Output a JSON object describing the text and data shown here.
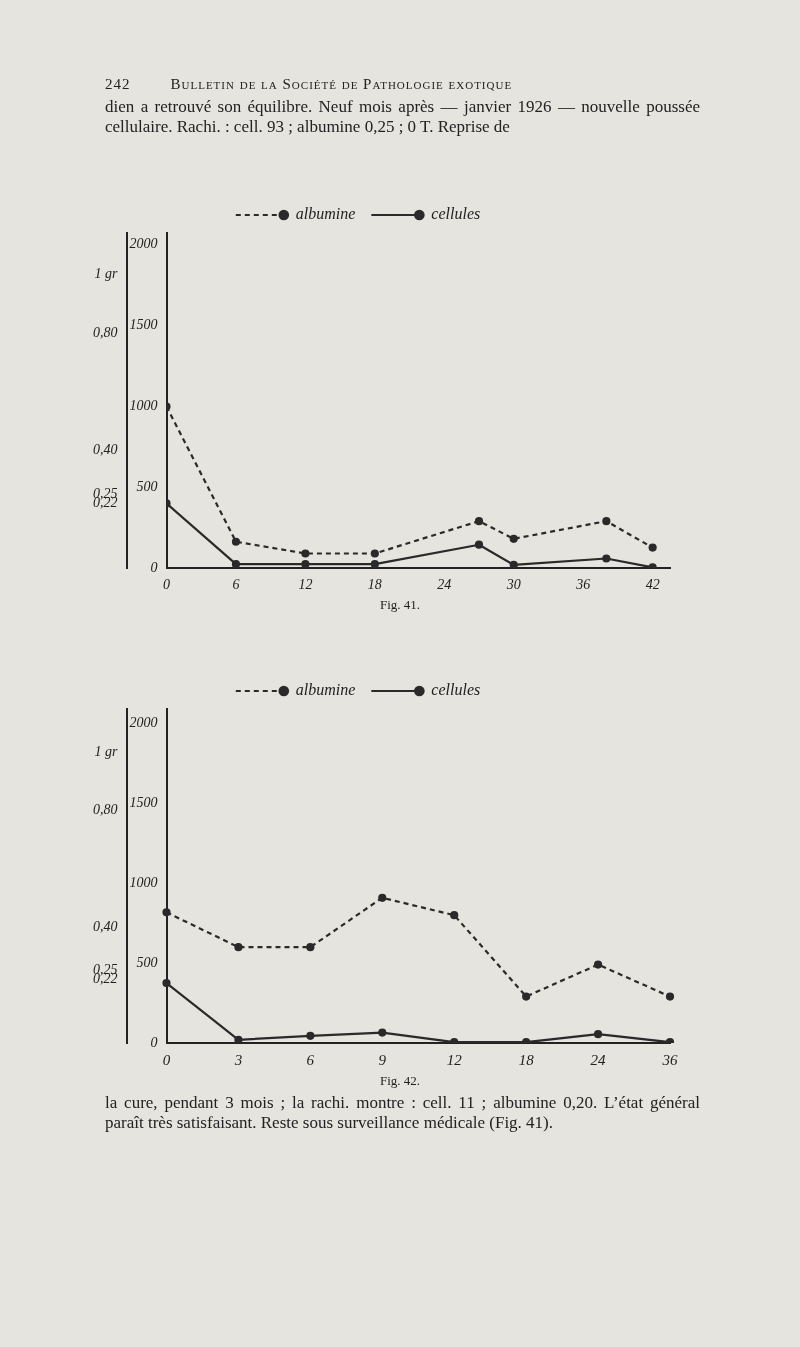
{
  "chart_data": [
    {
      "type": "line",
      "annotations": [
        "242",
        "Bulletin de la Société de Pathologie exotique",
        "dien a retrouvé son équilibre. Neuf mois après — janvier 1926 — nouvelle poussée cellulaire. Rachi. : cell. 93 ; albumine 0,25 ; 0 T. Reprise de",
        "Fig. 41."
      ],
      "x": [
        0,
        6,
        12,
        18,
        27,
        30,
        38,
        42
      ],
      "series": [
        {
          "name": "albumine",
          "color": "#2a2a2a",
          "axis": "y2",
          "line_style": "dashed",
          "values": [
            0.55,
            0.09,
            0.05,
            0.05,
            0.16,
            0.1,
            0.16,
            0.07
          ]
        },
        {
          "name": "cellules",
          "color": "#2a2a2a",
          "line_style": "solid",
          "values": [
            400,
            25,
            25,
            25,
            145,
            20,
            60,
            5
          ]
        }
      ],
      "xlim": [
        0,
        43.5
      ],
      "xticks": [
        0,
        6,
        12,
        18,
        24,
        30,
        36,
        42
      ],
      "ylim": [
        0,
        2070
      ],
      "yticks": [
        0,
        500,
        1000,
        1500,
        2000
      ],
      "y2lim": [
        0,
        1.14
      ],
      "y2ticks": [
        {
          "value": 0.22,
          "label": "0,22"
        },
        {
          "value": 0.25,
          "label": "0,25"
        },
        {
          "value": 0.4,
          "label": "0,40"
        },
        {
          "value": 0.8,
          "label": "0,80"
        },
        {
          "value": 1,
          "label": "1 gr"
        }
      ],
      "grid": false,
      "legend": "top",
      "marker": "circle"
    },
    {
      "type": "line",
      "annotations": [
        "Fig. 42.",
        "la cure, pendant 3 mois ; la rachi. montre : cell. 11 ; albumine 0,20. L’état général paraît très satisfaisant. Reste sous surveillance médicale (Fig. 41)."
      ],
      "categories": [
        "0",
        "3",
        "6",
        "9",
        "12",
        "18",
        "24",
        "36"
      ],
      "series": [
        {
          "name": "albumine",
          "color": "#2a2a2a",
          "axis": "y2",
          "line_style": "dashed",
          "values": [
            0.45,
            0.33,
            0.33,
            0.5,
            0.44,
            0.16,
            0.27,
            0.16
          ]
        },
        {
          "name": "cellules",
          "color": "#2a2a2a",
          "line_style": "solid",
          "values": [
            375,
            20,
            45,
            65,
            5,
            5,
            55,
            5
          ]
        }
      ],
      "ylim": [
        0,
        2090
      ],
      "yticks": [
        0,
        500,
        1000,
        1500,
        2000
      ],
      "y2lim": [
        0,
        1.15
      ],
      "y2ticks": [
        {
          "value": 0.22,
          "label": "0,22"
        },
        {
          "value": 0.25,
          "label": "0,25"
        },
        {
          "value": 0.4,
          "label": "0,40"
        },
        {
          "value": 0.8,
          "label": "0,80"
        },
        {
          "value": 1,
          "label": "1 gr"
        }
      ],
      "grid": false,
      "legend": "top",
      "marker": "circle"
    }
  ]
}
